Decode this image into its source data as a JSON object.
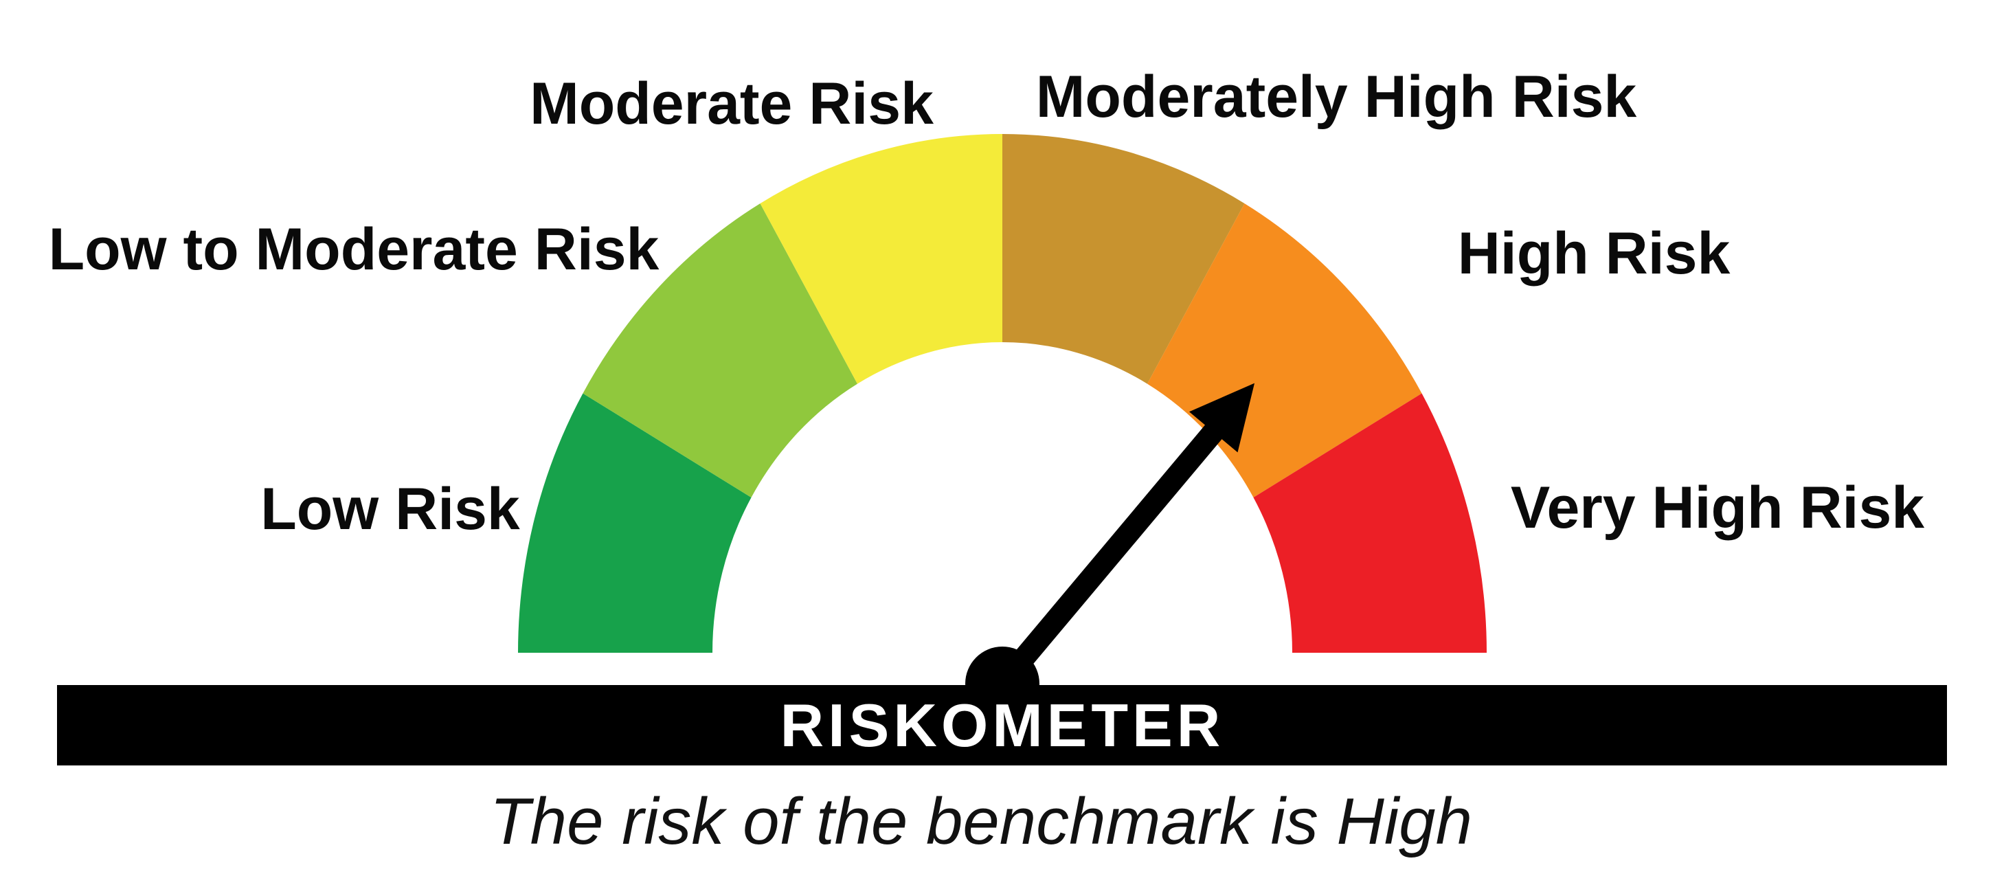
{
  "colors": {
    "background": "#FFFFFF",
    "bar": "#000000",
    "title_text": "#FFFFFF",
    "label_text": "#0A0A0A",
    "needle": "#000000"
  },
  "chart_data": {
    "type": "gauge",
    "title": "RISKOMETER",
    "subtitle": "The risk of the benchmark is High",
    "benchmark_risk_level": "High",
    "segments": [
      {
        "label": "Low Risk",
        "color": "#17A24B",
        "start_deg": 180,
        "end_deg": 150
      },
      {
        "label": "Low to Moderate Risk",
        "color": "#90C83D",
        "start_deg": 150,
        "end_deg": 120
      },
      {
        "label": "Moderate Risk",
        "color": "#F4EB39",
        "start_deg": 120,
        "end_deg": 90
      },
      {
        "label": "Moderately High Risk",
        "color": "#C8932F",
        "start_deg": 90,
        "end_deg": 60
      },
      {
        "label": "High Risk",
        "color": "#F68D1E",
        "start_deg": 60,
        "end_deg": 30
      },
      {
        "label": "Very High Risk",
        "color": "#EC1F26",
        "start_deg": 30,
        "end_deg": 0
      }
    ],
    "needle": {
      "points_to": "High Risk",
      "angle_deg": 50
    },
    "layout_hints": {
      "sweep": "semicircle 180deg, flat bottom",
      "segment_order": "left (lowest risk) to right (highest risk)"
    }
  }
}
